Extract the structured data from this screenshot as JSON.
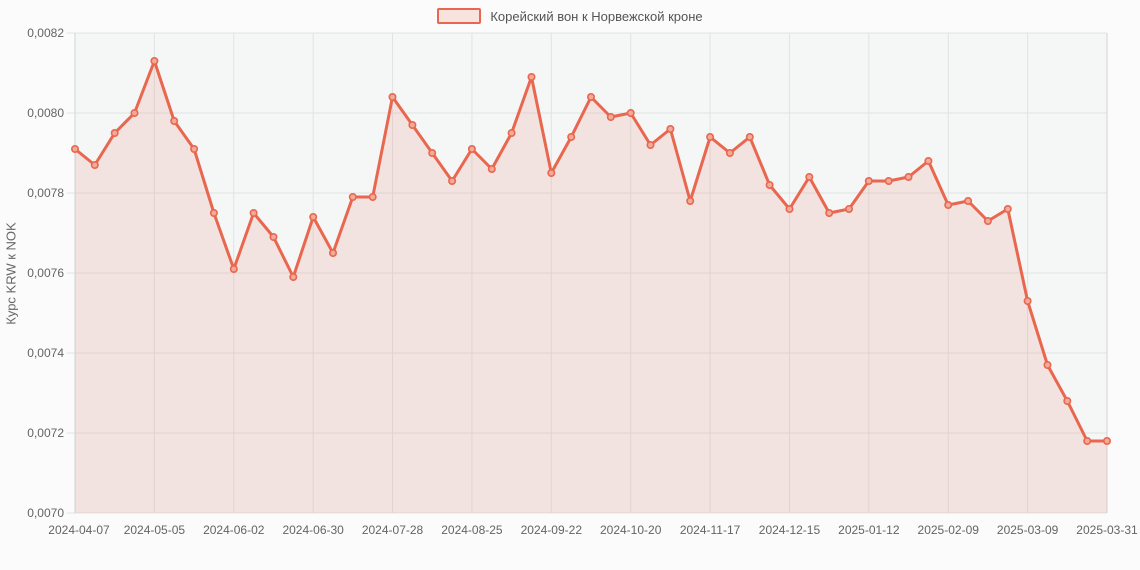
{
  "legend": {
    "label": "Корейский вон к Норвежской кроне"
  },
  "chart_data": {
    "type": "area",
    "title": "",
    "xlabel": "",
    "ylabel": "Курс KRW к NOK",
    "grid": true,
    "legend_position": "top-center",
    "ylim": [
      0.007,
      0.0082
    ],
    "yticks": [
      0.007,
      0.0072,
      0.0074,
      0.0076,
      0.0078,
      0.008,
      0.0082
    ],
    "ytick_labels": [
      "0,0070",
      "0,0072",
      "0,0074",
      "0,0076",
      "0,0078",
      "0,0080",
      "0,0082"
    ],
    "xtick_labels": [
      "2024-04-07",
      "2024-05-05",
      "2024-06-02",
      "2024-06-30",
      "2024-07-28",
      "2024-08-25",
      "2024-09-22",
      "2024-10-20",
      "2024-11-17",
      "2024-12-15",
      "2025-01-12",
      "2025-02-09",
      "2025-03-09",
      "2025-03-31"
    ],
    "xtick_indices": [
      0,
      4,
      8,
      12,
      16,
      20,
      24,
      28,
      32,
      36,
      40,
      44,
      48,
      52
    ],
    "series": [
      {
        "name": "Корейский вон к Норвежской кроне",
        "x": [
          "2024-04-07",
          "2024-04-14",
          "2024-04-21",
          "2024-04-28",
          "2024-05-05",
          "2024-05-12",
          "2024-05-19",
          "2024-05-26",
          "2024-06-02",
          "2024-06-09",
          "2024-06-16",
          "2024-06-23",
          "2024-06-30",
          "2024-07-07",
          "2024-07-14",
          "2024-07-21",
          "2024-07-28",
          "2024-08-04",
          "2024-08-11",
          "2024-08-18",
          "2024-08-25",
          "2024-09-01",
          "2024-09-08",
          "2024-09-15",
          "2024-09-22",
          "2024-09-29",
          "2024-10-06",
          "2024-10-13",
          "2024-10-20",
          "2024-10-27",
          "2024-11-03",
          "2024-11-10",
          "2024-11-17",
          "2024-11-24",
          "2024-12-01",
          "2024-12-08",
          "2024-12-15",
          "2024-12-22",
          "2024-12-29",
          "2025-01-05",
          "2025-01-12",
          "2025-01-19",
          "2025-01-26",
          "2025-02-02",
          "2025-02-09",
          "2025-02-16",
          "2025-02-23",
          "2025-03-02",
          "2025-03-09",
          "2025-03-16",
          "2025-03-23",
          "2025-03-30",
          "2025-03-31"
        ],
        "values": [
          0.00791,
          0.00787,
          0.00795,
          0.008,
          0.00813,
          0.00798,
          0.00791,
          0.00775,
          0.00761,
          0.00775,
          0.00769,
          0.00759,
          0.00774,
          0.00765,
          0.00779,
          0.00779,
          0.00804,
          0.00797,
          0.0079,
          0.00783,
          0.00791,
          0.00786,
          0.00795,
          0.00809,
          0.00785,
          0.00794,
          0.00804,
          0.00799,
          0.008,
          0.00792,
          0.00796,
          0.00778,
          0.00794,
          0.0079,
          0.00794,
          0.00782,
          0.00776,
          0.00784,
          0.00775,
          0.00776,
          0.00783,
          0.00783,
          0.00784,
          0.00788,
          0.00777,
          0.00778,
          0.00773,
          0.00776,
          0.00753,
          0.00737,
          0.00728,
          0.00718,
          0.00718
        ]
      }
    ],
    "colors": {
      "line": "#e8674e",
      "area_fill": "rgba(232,103,78,0.13)",
      "marker_fill": "#f3ab99",
      "plot_background": "#f5f6f6",
      "page_background": "#fbfbfb",
      "gridline": "#e1e3e3",
      "plot_border": "#d2d6d6",
      "axis_text": "#646464",
      "legend_text": "#545454"
    }
  }
}
